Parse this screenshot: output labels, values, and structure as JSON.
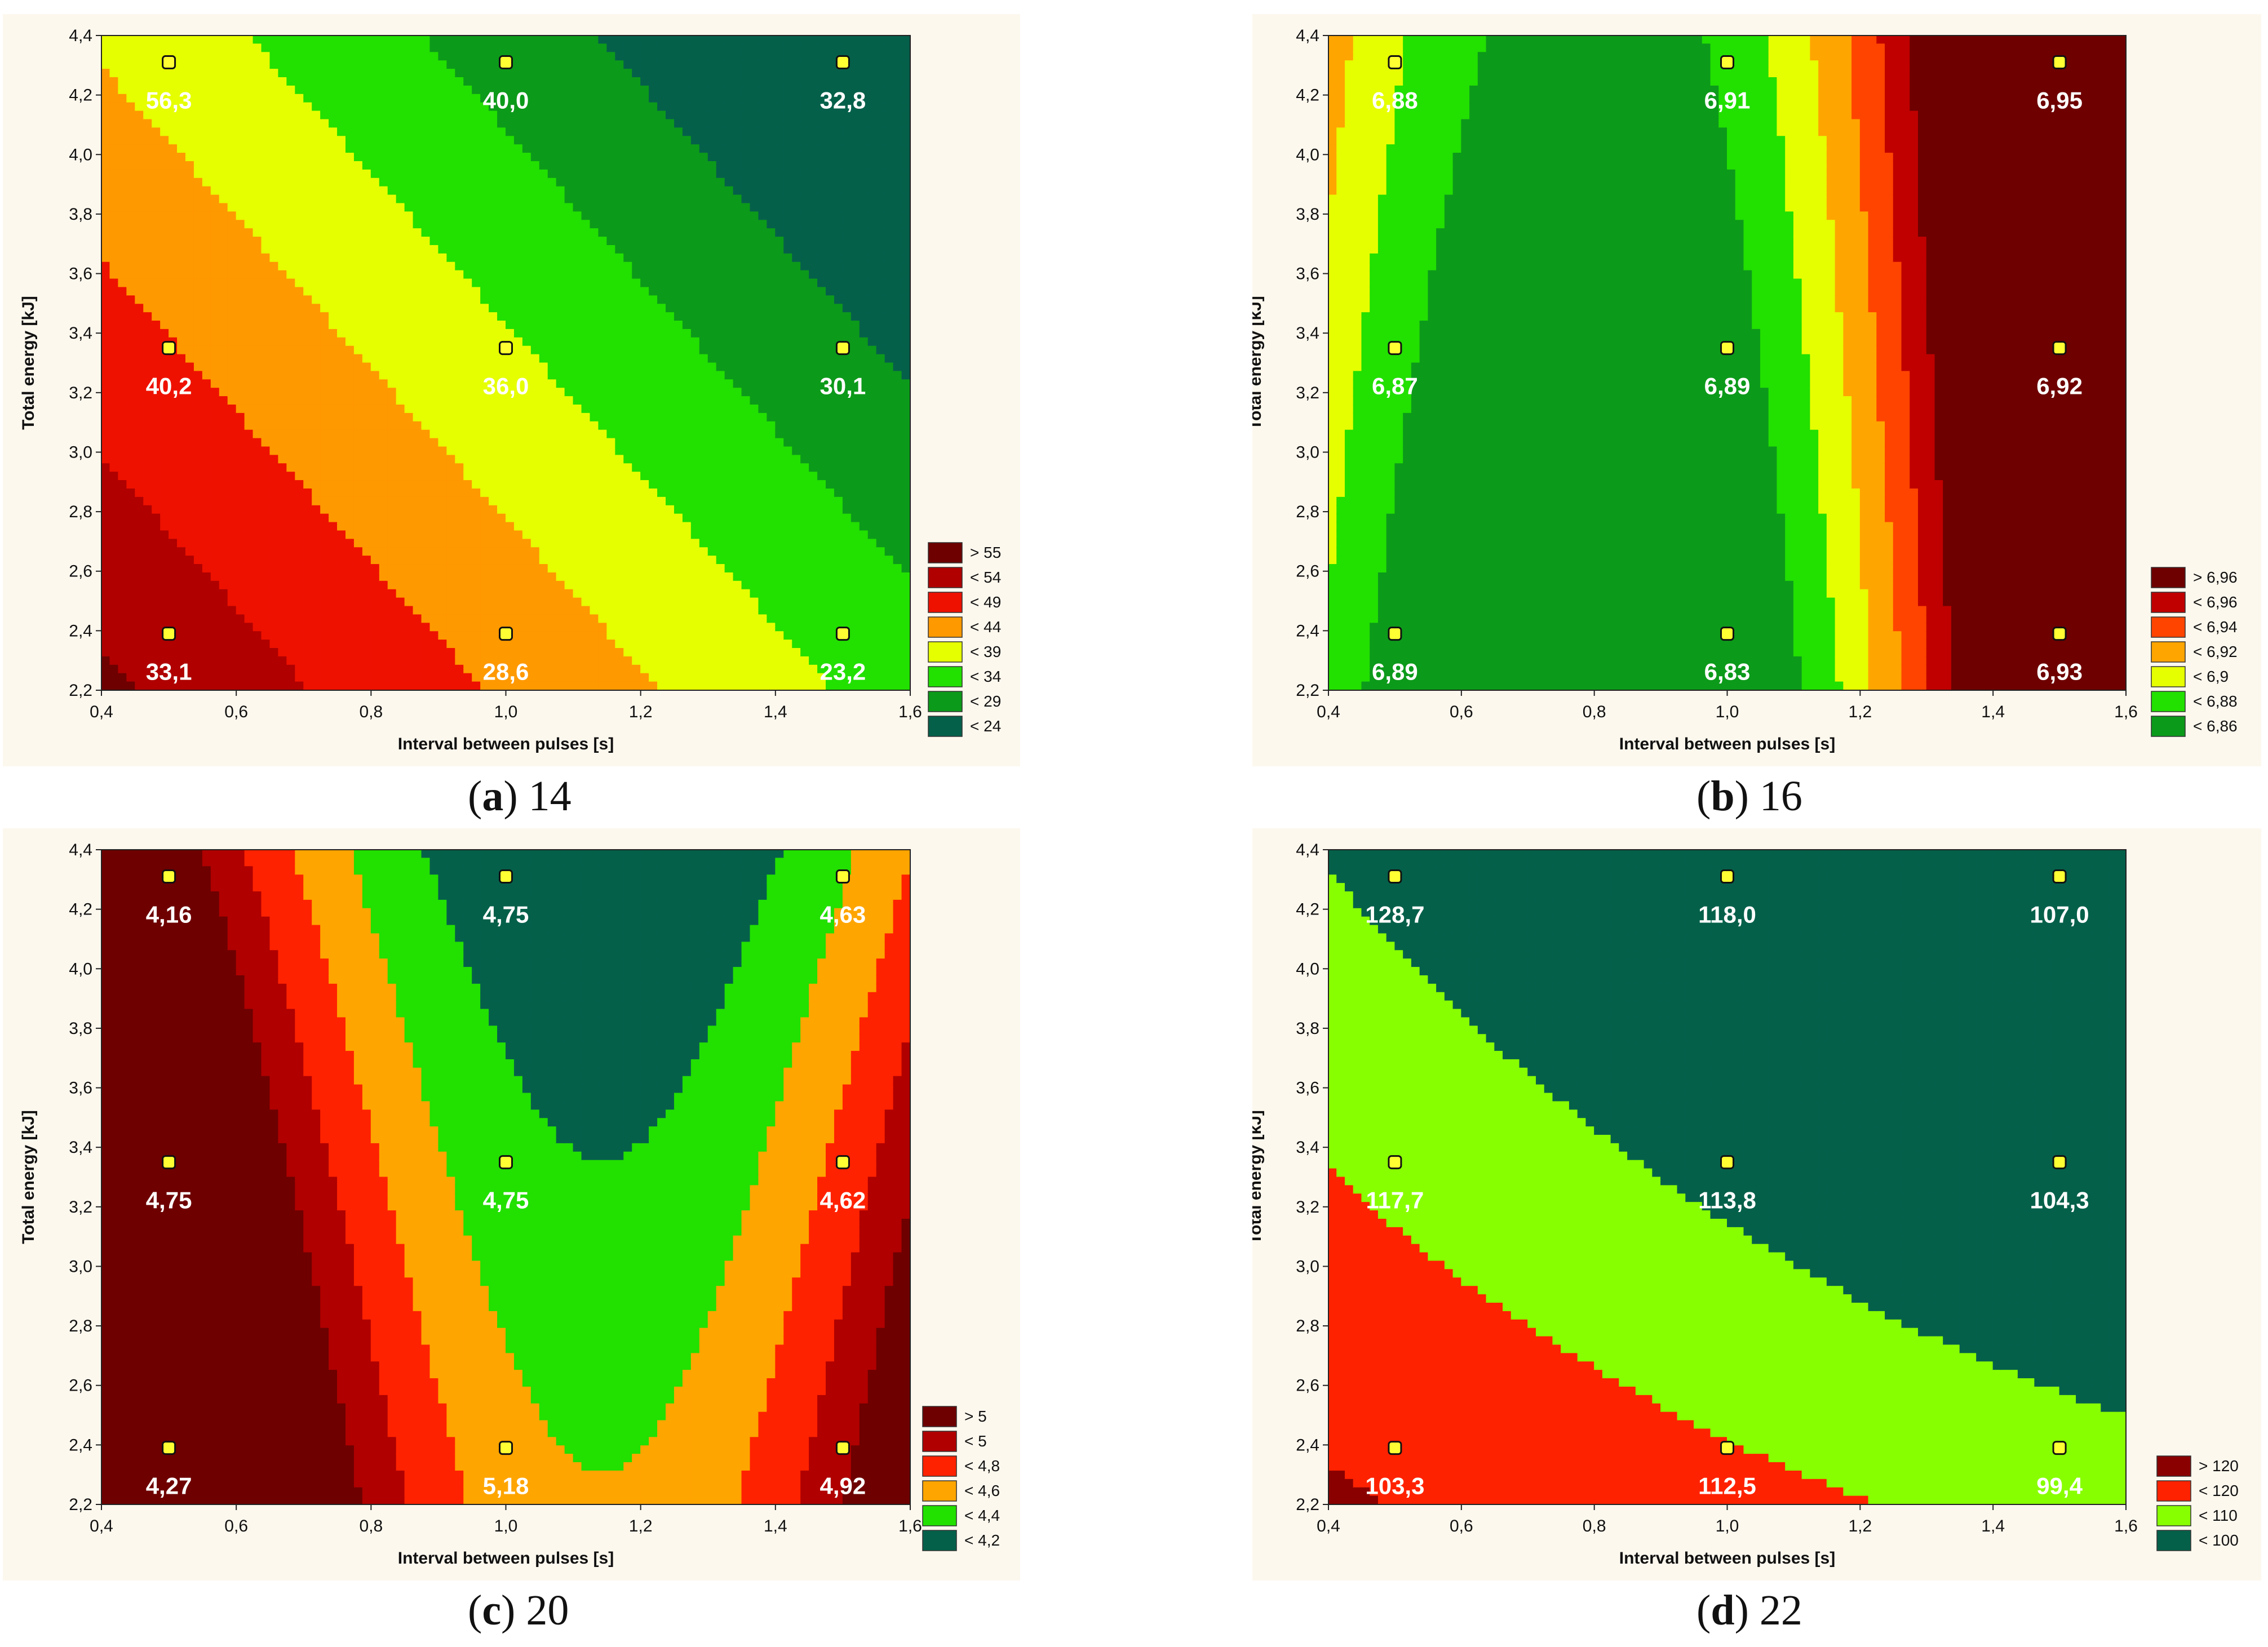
{
  "chart_data": [
    {
      "type": "contour",
      "caption_letter": "a",
      "caption_rest": "14",
      "xlabel": "Interval between pulses [s]",
      "ylabel": "Total energy [kJ]",
      "xlim": [
        0.4,
        1.6
      ],
      "ylim": [
        2.2,
        4.4
      ],
      "x_ticks": [
        "0,4",
        "0,6",
        "0,8",
        "1,0",
        "1,2",
        "1,4",
        "1,6"
      ],
      "y_ticks": [
        "2,2",
        "2,4",
        "2,6",
        "2,8",
        "3,0",
        "3,2",
        "3,4",
        "3,6",
        "3,8",
        "4,0",
        "4,2",
        "4,4"
      ],
      "legend": [
        {
          "label": "> 55",
          "color": "#6e0000"
        },
        {
          "label": "< 54",
          "color": "#b00000"
        },
        {
          "label": "< 49",
          "color": "#ee1100"
        },
        {
          "label": "< 44",
          "color": "#ff9900"
        },
        {
          "label": "< 39",
          "color": "#e6ff00"
        },
        {
          "label": "< 34",
          "color": "#22e000"
        },
        {
          "label": "< 29",
          "color": "#0c9a1a"
        },
        {
          "label": "< 24",
          "color": "#05604a"
        }
      ],
      "points": [
        {
          "x": 0.5,
          "y": 4.31,
          "label": "56,3"
        },
        {
          "x": 1.0,
          "y": 4.31,
          "label": "40,0"
        },
        {
          "x": 1.5,
          "y": 4.31,
          "label": "32,8"
        },
        {
          "x": 0.5,
          "y": 3.35,
          "label": "40,2"
        },
        {
          "x": 1.0,
          "y": 3.35,
          "label": "36,0"
        },
        {
          "x": 1.5,
          "y": 3.35,
          "label": "30,1"
        },
        {
          "x": 0.5,
          "y": 2.39,
          "label": "33,1"
        },
        {
          "x": 1.0,
          "y": 2.39,
          "label": "28,6"
        },
        {
          "x": 1.5,
          "y": 2.39,
          "label": "23,2"
        }
      ]
    },
    {
      "type": "contour",
      "caption_letter": "b",
      "caption_rest": "16",
      "xlabel": "Interval between pulses [s]",
      "ylabel": "Total energy [kJ]",
      "xlim": [
        0.4,
        1.6
      ],
      "ylim": [
        2.2,
        4.4
      ],
      "x_ticks": [
        "0,4",
        "0,6",
        "0,8",
        "1,0",
        "1,2",
        "1,4",
        "1,6"
      ],
      "y_ticks": [
        "2,2",
        "2,4",
        "2,6",
        "2,8",
        "3,0",
        "3,2",
        "3,4",
        "3,6",
        "3,8",
        "4,0",
        "4,2",
        "4,4"
      ],
      "legend": [
        {
          "label": "> 6,96",
          "color": "#6e0000"
        },
        {
          "label": "< 6,96",
          "color": "#c00000"
        },
        {
          "label": "< 6,94",
          "color": "#ff4400"
        },
        {
          "label": "< 6,92",
          "color": "#ffa500"
        },
        {
          "label": "< 6,9",
          "color": "#e6ff00"
        },
        {
          "label": "< 6,88",
          "color": "#22e000"
        },
        {
          "label": "< 6,86",
          "color": "#0c9a1a"
        }
      ],
      "points": [
        {
          "x": 0.5,
          "y": 4.31,
          "label": "6,88"
        },
        {
          "x": 1.0,
          "y": 4.31,
          "label": "6,91"
        },
        {
          "x": 1.5,
          "y": 4.31,
          "label": "6,95"
        },
        {
          "x": 0.5,
          "y": 3.35,
          "label": "6,87"
        },
        {
          "x": 1.0,
          "y": 3.35,
          "label": "6,89"
        },
        {
          "x": 1.5,
          "y": 3.35,
          "label": "6,92"
        },
        {
          "x": 0.5,
          "y": 2.39,
          "label": "6,89"
        },
        {
          "x": 1.0,
          "y": 2.39,
          "label": "6,83"
        },
        {
          "x": 1.5,
          "y": 2.39,
          "label": "6,93"
        }
      ]
    },
    {
      "type": "contour",
      "caption_letter": "c",
      "caption_rest": "20",
      "xlabel": "Interval between pulses [s]",
      "ylabel": "Total energy [kJ]",
      "xlim": [
        0.4,
        1.6
      ],
      "ylim": [
        2.2,
        4.4
      ],
      "x_ticks": [
        "0,4",
        "0,6",
        "0,8",
        "1,0",
        "1,2",
        "1,4",
        "1,6"
      ],
      "y_ticks": [
        "2,2",
        "2,4",
        "2,6",
        "2,8",
        "3,0",
        "3,2",
        "3,4",
        "3,6",
        "3,8",
        "4,0",
        "4,2",
        "4,4"
      ],
      "legend": [
        {
          "label": "> 5",
          "color": "#6e0000"
        },
        {
          "label": "< 5",
          "color": "#b00000"
        },
        {
          "label": "< 4,8",
          "color": "#ff2200"
        },
        {
          "label": "< 4,6",
          "color": "#ffa500"
        },
        {
          "label": "< 4,4",
          "color": "#22e000"
        },
        {
          "label": "< 4,2",
          "color": "#05604a"
        }
      ],
      "points": [
        {
          "x": 0.5,
          "y": 4.31,
          "label": "4,16"
        },
        {
          "x": 1.0,
          "y": 4.31,
          "label": "4,75"
        },
        {
          "x": 1.5,
          "y": 4.31,
          "label": "4,63"
        },
        {
          "x": 0.5,
          "y": 3.35,
          "label": "4,75"
        },
        {
          "x": 1.0,
          "y": 3.35,
          "label": "4,75"
        },
        {
          "x": 1.5,
          "y": 3.35,
          "label": "4,62"
        },
        {
          "x": 0.5,
          "y": 2.39,
          "label": "4,27"
        },
        {
          "x": 1.0,
          "y": 2.39,
          "label": "5,18"
        },
        {
          "x": 1.5,
          "y": 2.39,
          "label": "4,92"
        }
      ]
    },
    {
      "type": "contour",
      "caption_letter": "d",
      "caption_rest": "22",
      "xlabel": "Interval between pulses [s]",
      "ylabel": "Total energy [kJ]",
      "xlim": [
        0.4,
        1.6
      ],
      "ylim": [
        2.2,
        4.4
      ],
      "x_ticks": [
        "0,4",
        "0,6",
        "0,8",
        "1,0",
        "1,2",
        "1,4",
        "1,6"
      ],
      "y_ticks": [
        "2,2",
        "2,4",
        "2,6",
        "2,8",
        "3,0",
        "3,2",
        "3,4",
        "3,6",
        "3,8",
        "4,0",
        "4,2",
        "4,4"
      ],
      "legend": [
        {
          "label": "> 120",
          "color": "#8a0000"
        },
        {
          "label": "< 120",
          "color": "#ff2200"
        },
        {
          "label": "< 110",
          "color": "#88ff00"
        },
        {
          "label": "< 100",
          "color": "#05604a"
        }
      ],
      "points": [
        {
          "x": 0.5,
          "y": 4.31,
          "label": "128,7"
        },
        {
          "x": 1.0,
          "y": 4.31,
          "label": "118,0"
        },
        {
          "x": 1.5,
          "y": 4.31,
          "label": "107,0"
        },
        {
          "x": 0.5,
          "y": 3.35,
          "label": "117,7"
        },
        {
          "x": 1.0,
          "y": 3.35,
          "label": "113,8"
        },
        {
          "x": 1.5,
          "y": 3.35,
          "label": "104,3"
        },
        {
          "x": 0.5,
          "y": 2.39,
          "label": "103,3"
        },
        {
          "x": 1.0,
          "y": 2.39,
          "label": "112,5"
        },
        {
          "x": 1.5,
          "y": 2.39,
          "label": "99,4"
        }
      ]
    }
  ]
}
